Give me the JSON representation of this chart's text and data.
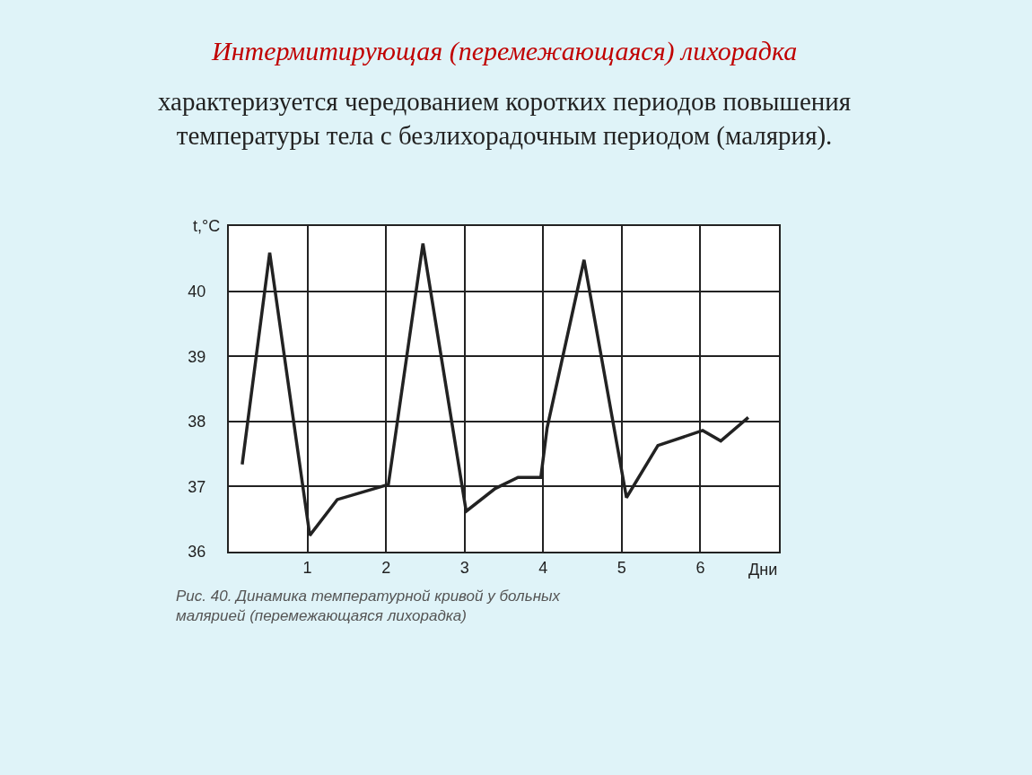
{
  "chart_data": {
    "type": "line",
    "title": "Интермитирующая (перемежающаяся) лихорадка",
    "subtitle": "характеризуется чередованием коротких периодов повышения температуры тела с безлихорадочным периодом (малярия).",
    "xlabel": "Дни",
    "ylabel": "t,°C",
    "annotations": [
      "Рис. 40. Динамика температурной кривой у больных малярией (перемежающаяся лихорадка)"
    ],
    "x": [
      0.17,
      0.52,
      1.03,
      1.38,
      2.03,
      2.47,
      3.02,
      3.39,
      3.68,
      3.97,
      4.05,
      4.52,
      5.06,
      5.46,
      6.03,
      6.26,
      6.61
    ],
    "series": [
      {
        "color": "#222222",
        "values": [
          37.34,
          40.59,
          36.25,
          36.8,
          37.03,
          40.73,
          36.62,
          36.97,
          37.14,
          37.14,
          37.9,
          40.48,
          36.83,
          37.63,
          37.86,
          37.7,
          38.06
        ]
      }
    ],
    "xlim": [
      0,
      7
    ],
    "xticks": [
      1,
      2,
      3,
      4,
      5,
      6
    ],
    "ylim": [
      36,
      41
    ],
    "yticks": [
      36,
      37,
      38,
      39,
      40
    ],
    "grid": true,
    "marker": "none",
    "line_style": "solid"
  }
}
